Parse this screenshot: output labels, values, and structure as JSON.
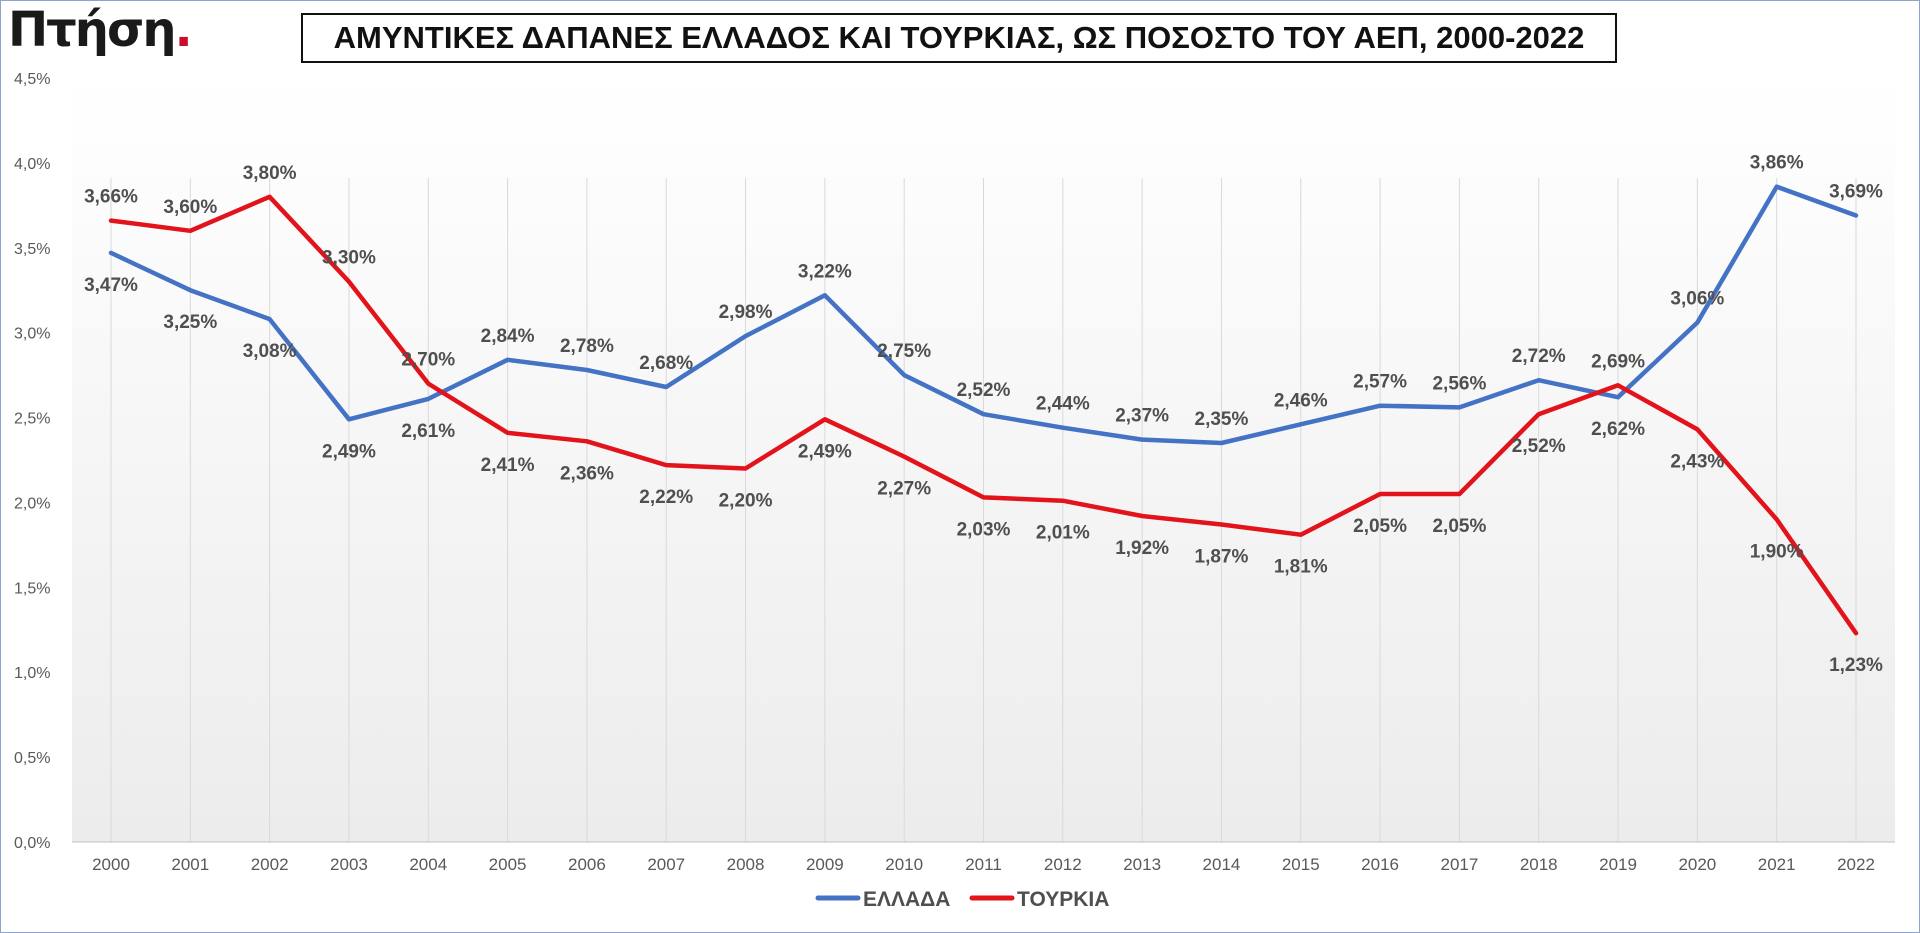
{
  "logo": {
    "text": "Πτήση",
    "dot": "."
  },
  "chart_data": {
    "type": "line",
    "title": "ΑΜΥΝΤΙΚΕΣ ΔΑΠΑΝΕΣ ΕΛΛΑΔΟΣ ΚΑΙ ΤΟΥΡΚΙΑΣ, ΩΣ ΠΟΣΟΣΤΟ ΤΟΥ ΑΕΠ, 2000-2022",
    "xlabel": "",
    "ylabel": "",
    "ylim": [
      0,
      4.5
    ],
    "ytick_labels": [
      "0,0%",
      "0,5%",
      "1,0%",
      "1,5%",
      "2,0%",
      "2,5%",
      "3,0%",
      "3,5%",
      "4,0%",
      "4,5%"
    ],
    "categories": [
      "2000",
      "2001",
      "2002",
      "2003",
      "2004",
      "2005",
      "2006",
      "2007",
      "2008",
      "2009",
      "2010",
      "2011",
      "2012",
      "2013",
      "2014",
      "2015",
      "2016",
      "2017",
      "2018",
      "2019",
      "2020",
      "2021",
      "2022"
    ],
    "grid": "vertical",
    "legend": "bottom",
    "series": [
      {
        "name": "ΕΛΛΑΔΑ",
        "color": "#4472c4",
        "values": [
          3.47,
          3.25,
          3.08,
          2.49,
          2.61,
          2.84,
          2.78,
          2.68,
          2.98,
          3.22,
          2.75,
          2.52,
          2.44,
          2.37,
          2.35,
          2.46,
          2.57,
          2.56,
          2.72,
          2.62,
          3.06,
          3.86,
          3.69
        ],
        "labels": [
          "3,47%",
          "3,25%",
          "3,08%",
          "2,49%",
          "2,61%",
          "2,84%",
          "2,78%",
          "2,68%",
          "2,98%",
          "3,22%",
          "2,75%",
          "2,52%",
          "2,44%",
          "2,37%",
          "2,35%",
          "2,46%",
          "2,57%",
          "2,56%",
          "2,72%",
          "2,62%",
          "3,06%",
          "3,86%",
          "3,69%"
        ]
      },
      {
        "name": "ΤΟΥΡΚΙΑ",
        "color": "#e3131b",
        "values": [
          3.66,
          3.6,
          3.8,
          3.3,
          2.7,
          2.41,
          2.36,
          2.22,
          2.2,
          2.49,
          2.27,
          2.03,
          2.01,
          1.92,
          1.87,
          1.81,
          2.05,
          2.05,
          2.52,
          2.69,
          2.43,
          1.9,
          1.23
        ],
        "labels": [
          "3,66%",
          "3,60%",
          "3,80%",
          "3,30%",
          "2,70%",
          "2,41%",
          "2,36%",
          "2,22%",
          "2,20%",
          "2,49%",
          "2,27%",
          "2,03%",
          "2,01%",
          "1,92%",
          "1,87%",
          "1,81%",
          "2,05%",
          "2,05%",
          "2,52%",
          "2,69%",
          "2,43%",
          "1,90%",
          "1,23%"
        ]
      }
    ]
  }
}
